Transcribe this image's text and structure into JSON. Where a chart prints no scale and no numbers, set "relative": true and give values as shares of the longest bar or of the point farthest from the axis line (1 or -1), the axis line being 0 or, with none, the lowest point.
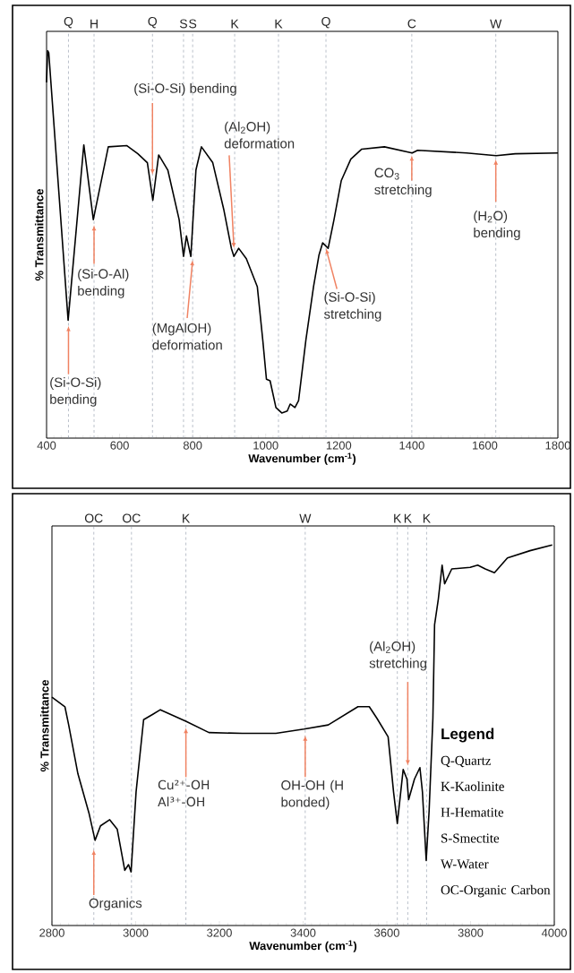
{
  "chart_data": [
    {
      "type": "line",
      "xlabel": "Wavenumber (cm$^{-1}$)",
      "ylabel": "% Transmittance",
      "relative": true,
      "color": "#000000",
      "xlim": [
        400,
        1800
      ],
      "xticks": [
        400,
        600,
        800,
        1000,
        1200,
        1400,
        1600,
        1800
      ],
      "x": [
        400,
        403,
        406,
        459,
        502,
        528,
        569,
        620,
        650,
        676,
        691,
        707,
        732,
        763,
        775,
        783,
        795,
        809,
        824,
        855,
        885,
        906,
        913,
        926,
        947,
        977,
        992,
        1002,
        1012,
        1028,
        1044,
        1059,
        1067,
        1080,
        1090,
        1110,
        1131,
        1146,
        1156,
        1171,
        1187,
        1207,
        1233,
        1263,
        1325,
        1401,
        1416,
        1550,
        1631,
        1683,
        1800
      ],
      "values": [
        0.918,
        1.0,
        0.995,
        0.304,
        0.757,
        0.564,
        0.752,
        0.755,
        0.734,
        0.711,
        0.614,
        0.731,
        0.692,
        0.564,
        0.469,
        0.522,
        0.469,
        0.692,
        0.752,
        0.711,
        0.591,
        0.49,
        0.469,
        0.49,
        0.463,
        0.391,
        0.253,
        0.152,
        0.148,
        0.079,
        0.065,
        0.07,
        0.088,
        0.079,
        0.097,
        0.253,
        0.391,
        0.473,
        0.504,
        0.49,
        0.564,
        0.665,
        0.72,
        0.746,
        0.752,
        0.736,
        0.743,
        0.736,
        0.729,
        0.734,
        0.736
      ],
      "ref_lines": [
        {
          "axis": "x",
          "value": 460,
          "label": "Q",
          "color": "#8c96a6",
          "line_style": "dashed"
        },
        {
          "axis": "x",
          "value": 530,
          "label": "H",
          "color": "#8c96a6",
          "line_style": "dashed"
        },
        {
          "axis": "x",
          "value": 690,
          "label": "Q",
          "color": "#8c96a6",
          "line_style": "dashed"
        },
        {
          "axis": "x",
          "value": 775,
          "label": "S",
          "color": "#8c96a6",
          "line_style": "dashed"
        },
        {
          "axis": "x",
          "value": 800,
          "label": "S",
          "color": "#8c96a6",
          "line_style": "dashed"
        },
        {
          "axis": "x",
          "value": 915,
          "label": "K",
          "color": "#8c96a6",
          "line_style": "dashed"
        },
        {
          "axis": "x",
          "value": 1035,
          "label": "K",
          "color": "#8c96a6",
          "line_style": "dashed"
        },
        {
          "axis": "x",
          "value": 1165,
          "label": "Q",
          "color": "#8c96a6",
          "line_style": "dashed"
        },
        {
          "axis": "x",
          "value": 1400,
          "label": "C",
          "color": "#8c96a6",
          "line_style": "dashed"
        },
        {
          "axis": "x",
          "value": 1630,
          "label": "W",
          "color": "#8c96a6",
          "line_style": "dashed"
        }
      ],
      "annotations": [
        {
          "text": "(Si-O-Si) bending",
          "x": 690,
          "y": 0.68
        },
        {
          "text": "(Al$_{2}$OH) deformation",
          "x": 913,
          "y": 0.49
        },
        {
          "text": "CO$_{3}$ stretching",
          "x": 1400,
          "y": 0.73
        },
        {
          "text": "(H$_{2}$O) bending",
          "x": 1630,
          "y": 0.72
        },
        {
          "text": "(Si-O-Al) bending",
          "x": 530,
          "y": 0.55
        },
        {
          "text": "(Si-O-Si) bending",
          "x": 460,
          "y": 0.29
        },
        {
          "text": "(MgAlOH) deformation",
          "x": 800,
          "y": 0.46
        },
        {
          "text": "(Si-O-Si) stretching",
          "x": 1165,
          "y": 0.49
        }
      ]
    },
    {
      "type": "line",
      "xlabel": "Wavenumber (cm$^{-1}$)",
      "ylabel": "% Transmittance",
      "relative": true,
      "color": "#000000",
      "xlim": [
        2800,
        4000
      ],
      "xticks": [
        2800,
        3000,
        3200,
        3400,
        3600,
        3800,
        4000
      ],
      "x": [
        2800,
        2831,
        2840,
        2862,
        2889,
        2903,
        2916,
        2938,
        2956,
        2974,
        2983,
        2989,
        3001,
        3019,
        3041,
        3059,
        3121,
        3175,
        3255,
        3335,
        3402,
        3460,
        3531,
        3558,
        3576,
        3603,
        3616,
        3625,
        3639,
        3648,
        3652,
        3666,
        3679,
        3685,
        3694,
        3701,
        3710,
        3714,
        3723,
        3732,
        3738,
        3755,
        3799,
        3817,
        3835,
        3857,
        3888,
        3942,
        3995
      ],
      "values": [
        0.6,
        0.575,
        0.527,
        0.399,
        0.293,
        0.224,
        0.262,
        0.278,
        0.253,
        0.145,
        0.16,
        0.141,
        0.351,
        0.541,
        0.555,
        0.567,
        0.536,
        0.507,
        0.505,
        0.505,
        0.516,
        0.527,
        0.575,
        0.575,
        0.545,
        0.496,
        0.351,
        0.268,
        0.41,
        0.385,
        0.331,
        0.385,
        0.415,
        0.351,
        0.171,
        0.302,
        0.545,
        0.79,
        0.858,
        0.947,
        0.898,
        0.937,
        0.941,
        0.947,
        0.937,
        0.927,
        0.966,
        0.985,
        1.0
      ],
      "ref_lines": [
        {
          "axis": "x",
          "value": 2900,
          "label": "OC",
          "color": "#8c96a6",
          "line_style": "dashed"
        },
        {
          "axis": "x",
          "value": 2990,
          "label": "OC",
          "color": "#8c96a6",
          "line_style": "dashed"
        },
        {
          "axis": "x",
          "value": 3120,
          "label": "K",
          "color": "#8c96a6",
          "line_style": "dashed"
        },
        {
          "axis": "x",
          "value": 3405,
          "label": "W",
          "color": "#8c96a6",
          "line_style": "dashed"
        },
        {
          "axis": "x",
          "value": 3625,
          "label": "K",
          "color": "#8c96a6",
          "line_style": "dashed"
        },
        {
          "axis": "x",
          "value": 3650,
          "label": "K",
          "color": "#8c96a6",
          "line_style": "dashed"
        },
        {
          "axis": "x",
          "value": 3695,
          "label": "K",
          "color": "#8c96a6",
          "line_style": "dashed"
        }
      ],
      "annotations": [
        {
          "text": "(Al$_{2}$OH) stretching",
          "x": 3650,
          "y": 0.42
        },
        {
          "text": "Cu²⁺-OH Al³⁺-OH",
          "x": 3120,
          "y": 0.52
        },
        {
          "text": "OH-OH (H bonded)",
          "x": 3405,
          "y": 0.5
        },
        {
          "text": "Organics",
          "x": 2900,
          "y": 0.2
        },
        "Legend",
        "Q-Quartz",
        "K-Kaolinite",
        "H-Hematite",
        "S-Smectite",
        "W-Water",
        "OC-Organic Carbon"
      ]
    }
  ]
}
